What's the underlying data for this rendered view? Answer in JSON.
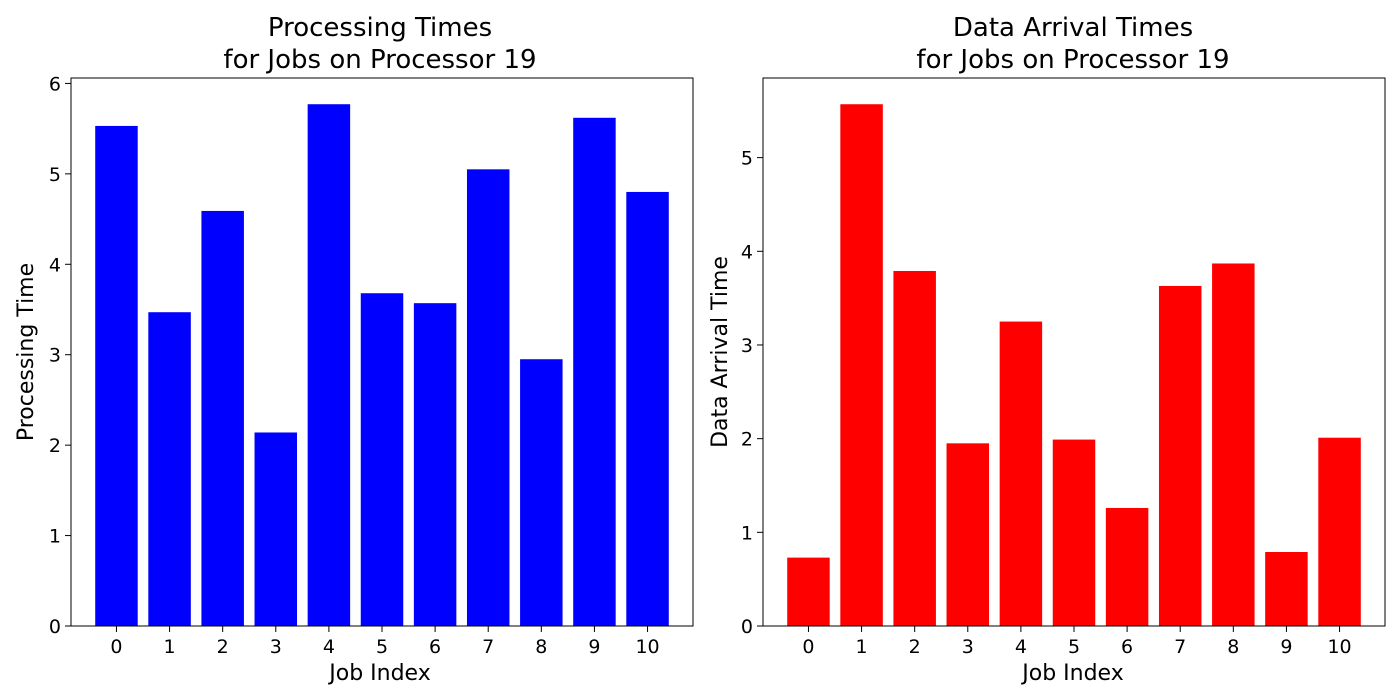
{
  "chart_data": [
    {
      "type": "bar",
      "title_line1": "Processing Times",
      "title_line2": "for Jobs on Processor 19",
      "xlabel": "Job Index",
      "ylabel": "Processing Time",
      "categories": [
        "0",
        "1",
        "2",
        "3",
        "4",
        "5",
        "6",
        "7",
        "8",
        "9",
        "10"
      ],
      "values": [
        5.53,
        3.47,
        4.59,
        2.14,
        5.77,
        3.68,
        3.57,
        5.05,
        2.95,
        5.62,
        4.8
      ],
      "ylim": [
        0,
        6.06
      ],
      "yticks": [
        0,
        1,
        2,
        3,
        4,
        5,
        6
      ],
      "bar_color": "#0000ff",
      "grid": false,
      "legend": false
    },
    {
      "type": "bar",
      "title_line1": "Data Arrival Times",
      "title_line2": "for Jobs on Processor 19",
      "xlabel": "Job Index",
      "ylabel": "Data Arrival Time",
      "categories": [
        "0",
        "1",
        "2",
        "3",
        "4",
        "5",
        "6",
        "7",
        "8",
        "9",
        "10"
      ],
      "values": [
        0.73,
        5.57,
        3.79,
        1.95,
        3.25,
        1.99,
        1.26,
        3.63,
        3.87,
        0.79,
        2.01
      ],
      "ylim": [
        0,
        5.85
      ],
      "yticks": [
        0,
        1,
        2,
        3,
        4,
        5
      ],
      "bar_color": "#ff0000",
      "grid": false,
      "legend": false
    }
  ]
}
